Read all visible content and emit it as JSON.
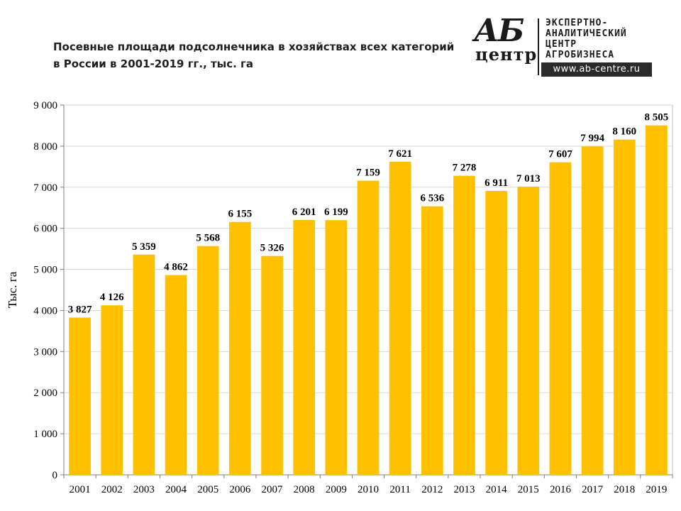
{
  "header": {
    "title_line1": "Посевные площади подсолнечника в хозяйствах всех категорий",
    "title_line2": "в России в 2001-2019 гг., тыс. га"
  },
  "logo": {
    "mark_top": "АБ",
    "mark_bottom": "центр",
    "line1": "ЭКСПЕРТНО-",
    "line2": "АНАЛИТИЧЕСКИЙ",
    "line3": "ЦЕНТР",
    "line4": "АГРОБИЗНЕСА",
    "url": "www.ab-centre.ru"
  },
  "chart_data": {
    "type": "bar",
    "title": "Посевные площади подсолнечника в хозяйствах всех категорий в России в 2001-2019 гг., тыс. га",
    "ylabel": "Тыс. га",
    "xlabel": "",
    "ylim": [
      0,
      9000
    ],
    "yticks": [
      "0",
      "1 000",
      "2 000",
      "3 000",
      "4 000",
      "5 000",
      "6 000",
      "7 000",
      "8 000",
      "9 000"
    ],
    "ytick_values": [
      0,
      1000,
      2000,
      3000,
      4000,
      5000,
      6000,
      7000,
      8000,
      9000
    ],
    "grid": true,
    "bar_color": "#FFC000",
    "categories": [
      "2001",
      "2002",
      "2003",
      "2004",
      "2005",
      "2006",
      "2007",
      "2008",
      "2009",
      "2010",
      "2011",
      "2012",
      "2013",
      "2014",
      "2015",
      "2016",
      "2017",
      "2018",
      "2019"
    ],
    "values": [
      3827,
      4126,
      5359,
      4862,
      5568,
      6155,
      5326,
      6201,
      6199,
      7159,
      7621,
      6536,
      7278,
      6911,
      7013,
      7607,
      7994,
      8160,
      8505
    ],
    "labels": [
      "3 827",
      "4 126",
      "5 359",
      "4 862",
      "5 568",
      "6 155",
      "5 326",
      "6 201",
      "6 199",
      "7 159",
      "7 621",
      "6 536",
      "7 278",
      "6 911",
      "7 013",
      "7 607",
      "7 994",
      "8 160",
      "8 505"
    ]
  }
}
